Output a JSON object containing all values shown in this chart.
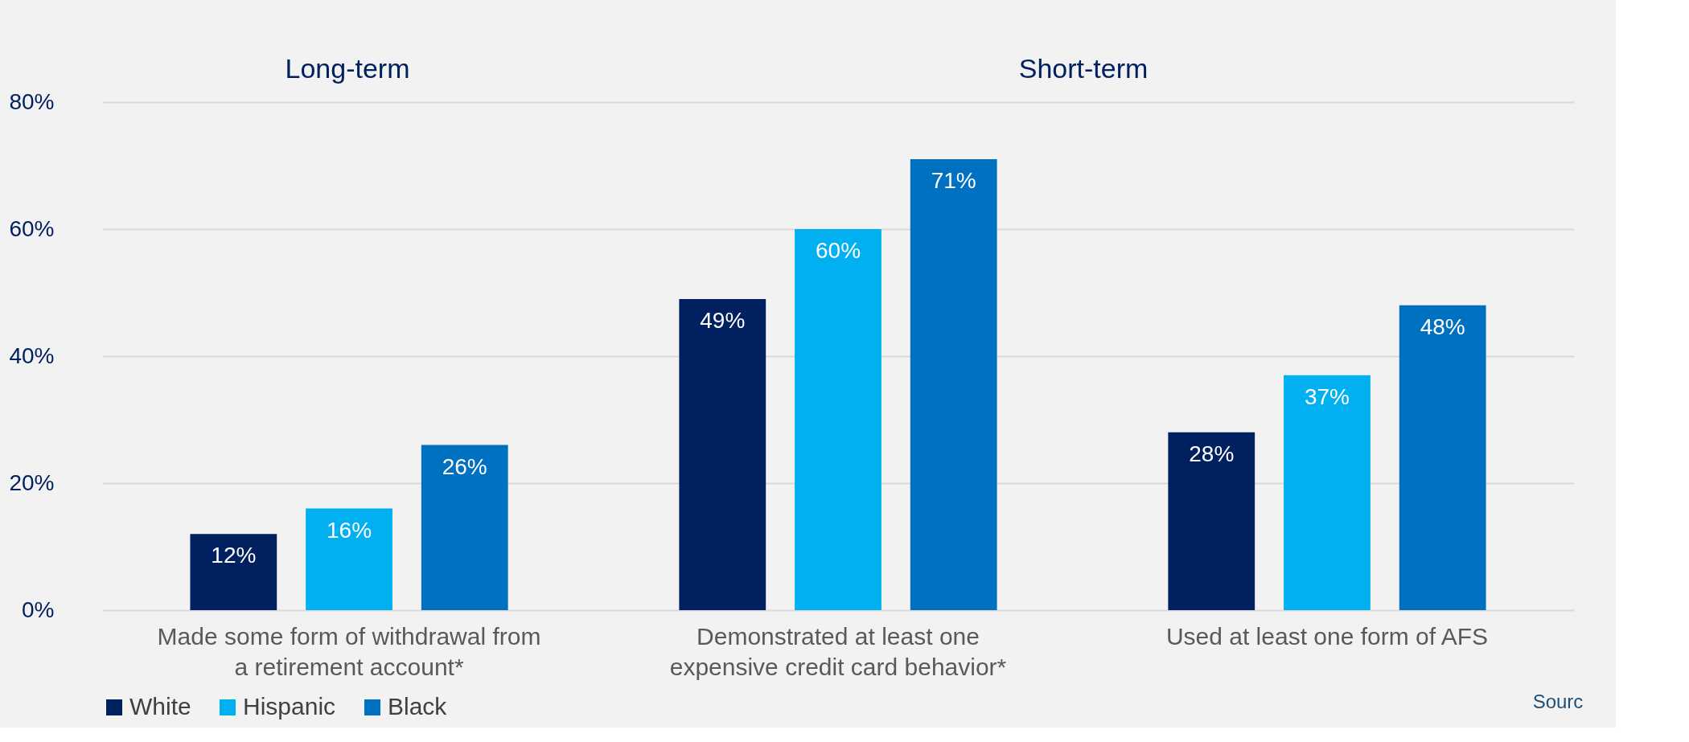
{
  "chart_data": {
    "type": "bar",
    "categories": [
      "Made some form of withdrawal from a retirement account*",
      "Demonstrated at least one expensive credit card behavior*",
      "Used at least one form of AFS"
    ],
    "series": [
      {
        "name": "White",
        "color": "#002060",
        "values": [
          12,
          49,
          28
        ],
        "value_labels": [
          "12%",
          "49%",
          "28%"
        ]
      },
      {
        "name": "Hispanic",
        "color": "#00b0f0",
        "values": [
          16,
          60,
          37
        ],
        "value_labels": [
          "16%",
          "60%",
          "37%"
        ]
      },
      {
        "name": "Black",
        "color": "#0070c0",
        "values": [
          26,
          71,
          48
        ],
        "value_labels": [
          "26%",
          "71%",
          "48%"
        ]
      }
    ],
    "ylim": [
      0,
      80
    ],
    "yticks": [
      {
        "value": 0,
        "label": "0%"
      },
      {
        "value": 20,
        "label": "20%"
      },
      {
        "value": 40,
        "label": "40%"
      },
      {
        "value": 60,
        "label": "60%"
      },
      {
        "value": 80,
        "label": "80%"
      }
    ],
    "annotations": [
      "Long-term",
      "Short-term",
      "Sourc"
    ],
    "grid": "y",
    "legend": "bottom"
  }
}
